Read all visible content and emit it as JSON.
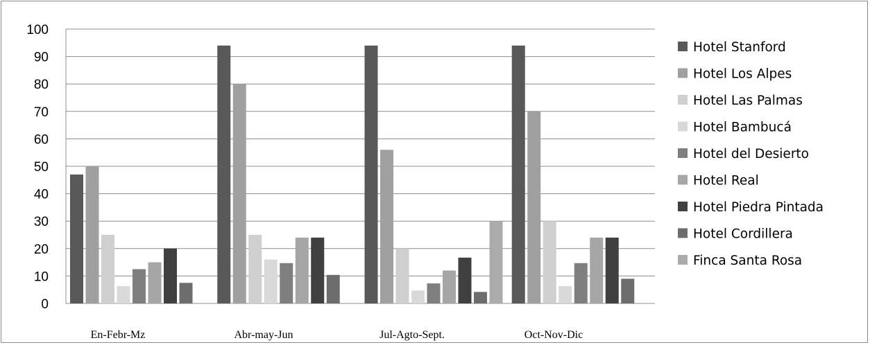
{
  "chart_data": {
    "type": "bar",
    "categories": [
      "En-Febr-Mz",
      "Abr-may-Jun",
      "Jul-Agto-Sept.",
      "Oct-Nov-Dic"
    ],
    "ylim": [
      0,
      100
    ],
    "yticks": [
      0,
      10,
      20,
      30,
      40,
      50,
      60,
      70,
      80,
      90,
      100
    ],
    "grid": true,
    "legend_position": "right",
    "series": [
      {
        "name": "Hotel Stanford",
        "color": "#595959",
        "values": [
          47,
          94,
          94,
          94
        ]
      },
      {
        "name": "Hotel Los Alpes",
        "color": "#a0a0a0",
        "values": [
          50,
          80,
          56,
          70
        ]
      },
      {
        "name": "Hotel Las Palmas",
        "color": "#cfcfcf",
        "values": [
          25,
          25,
          20,
          30
        ]
      },
      {
        "name": "Hotel Bambucá",
        "color": "#d9d9d9",
        "values": [
          6.3,
          16,
          4.7,
          6.3
        ]
      },
      {
        "name": "Hotel del Desierto",
        "color": "#7f7f7f",
        "values": [
          12.5,
          14.7,
          7.3,
          14.7
        ]
      },
      {
        "name": "Hotel Real",
        "color": "#a6a6a6",
        "values": [
          15,
          24,
          12,
          24
        ]
      },
      {
        "name": "Hotel Piedra Pintada",
        "color": "#404040",
        "values": [
          20,
          24,
          16.7,
          24
        ]
      },
      {
        "name": "Hotel Cordillera",
        "color": "#6d6d6d",
        "values": [
          7.5,
          10.4,
          4.2,
          9
        ]
      },
      {
        "name": "Finca Santa Rosa",
        "color": "#ababab",
        "values": [
          0,
          0,
          30,
          0
        ]
      }
    ]
  }
}
